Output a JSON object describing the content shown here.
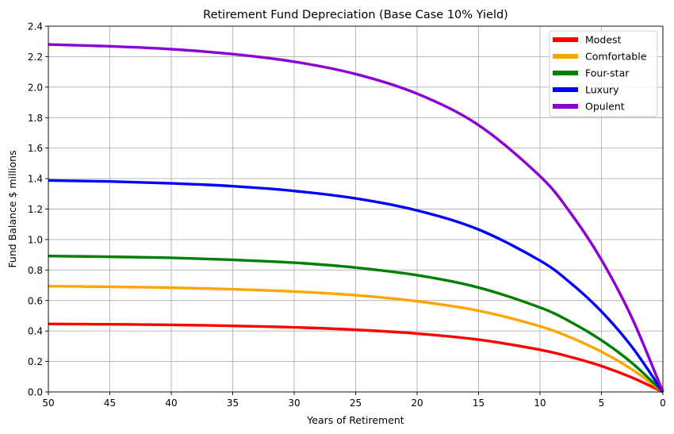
{
  "chart_data": {
    "type": "line",
    "title": "Retirement Fund Depreciation (Base Case 10% Yield)",
    "xlabel": "Years of Retirement",
    "ylabel": "Fund Balance $ millions",
    "xlim": [
      50,
      0
    ],
    "ylim": [
      0,
      2.4
    ],
    "x_ticks": [
      50,
      45,
      40,
      35,
      30,
      25,
      20,
      15,
      10,
      5,
      0
    ],
    "y_ticks": [
      0.0,
      0.2,
      0.4,
      0.6,
      0.8,
      1.0,
      1.2,
      1.4,
      1.6,
      1.8,
      2.0,
      2.2,
      2.4
    ],
    "x_tick_labels": [
      "50",
      "45",
      "40",
      "35",
      "30",
      "25",
      "20",
      "15",
      "10",
      "5",
      "0"
    ],
    "y_tick_labels": [
      "0.0",
      "0.2",
      "0.4",
      "0.6",
      "0.8",
      "1.0",
      "1.2",
      "1.4",
      "1.6",
      "1.8",
      "2.0",
      "2.2",
      "2.4"
    ],
    "grid": true,
    "legend_position": "top-right",
    "x": [
      50,
      45,
      40,
      35,
      30,
      25,
      20,
      15,
      10,
      7.5,
      5,
      2.5,
      0
    ],
    "series": [
      {
        "name": "Modest",
        "color": "#ff0000",
        "values": [
          0.446,
          0.444,
          0.44,
          0.434,
          0.424,
          0.408,
          0.383,
          0.343,
          0.277,
          0.229,
          0.17,
          0.094,
          0.0
        ]
      },
      {
        "name": "Comfortable",
        "color": "#ffa500",
        "values": [
          0.694,
          0.69,
          0.684,
          0.674,
          0.659,
          0.635,
          0.595,
          0.533,
          0.431,
          0.357,
          0.264,
          0.147,
          0.0
        ]
      },
      {
        "name": "Four-star",
        "color": "#008000",
        "values": [
          0.892,
          0.887,
          0.88,
          0.867,
          0.848,
          0.816,
          0.766,
          0.685,
          0.554,
          0.459,
          0.339,
          0.189,
          0.0
        ]
      },
      {
        "name": "Luxury",
        "color": "#0000ff",
        "values": [
          1.388,
          1.381,
          1.369,
          1.35,
          1.319,
          1.27,
          1.191,
          1.066,
          0.862,
          0.714,
          0.528,
          0.294,
          0.0
        ]
      },
      {
        "name": "Opulent",
        "color": "#8b00d4",
        "values": [
          2.28,
          2.268,
          2.249,
          2.217,
          2.167,
          2.086,
          1.957,
          1.751,
          1.416,
          1.173,
          0.867,
          0.483,
          0.0
        ]
      }
    ]
  }
}
